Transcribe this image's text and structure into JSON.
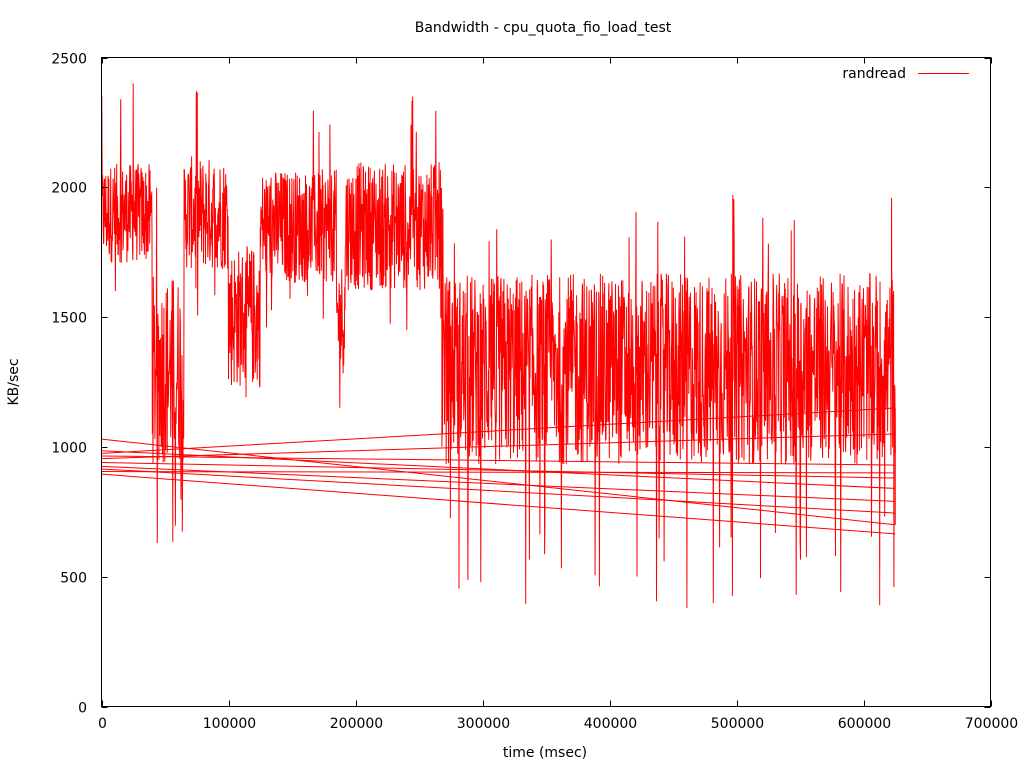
{
  "chart_data": {
    "type": "line",
    "title": "Bandwidth - cpu_quota_fio_load_test",
    "xlabel": "time (msec)",
    "ylabel": "KB/sec",
    "xlim": [
      0,
      700000
    ],
    "ylim": [
      0,
      2500
    ],
    "x_ticks": [
      0,
      100000,
      200000,
      300000,
      400000,
      500000,
      600000,
      700000
    ],
    "x_tick_labels": [
      "0",
      "100000",
      "200000",
      "300000",
      "400000",
      "500000",
      "600000",
      "700000"
    ],
    "y_ticks": [
      0,
      500,
      1000,
      1500,
      2000,
      2500
    ],
    "y_tick_labels": [
      "0",
      "500",
      "1000",
      "1500",
      "2000",
      "2500"
    ],
    "grid": false,
    "legend_position": "top-right",
    "series": [
      {
        "name": "randread",
        "color": "#ff0000",
        "segments_summary": [
          {
            "x_start": 0,
            "x_end": 40000,
            "mean": 1900,
            "min": 1550,
            "max": 2400
          },
          {
            "x_start": 40000,
            "x_end": 65000,
            "mean": 1300,
            "min": 630,
            "max": 2150
          },
          {
            "x_start": 65000,
            "x_end": 100000,
            "mean": 1900,
            "min": 1500,
            "max": 2370
          },
          {
            "x_start": 100000,
            "x_end": 125000,
            "mean": 1500,
            "min": 1000,
            "max": 2200
          },
          {
            "x_start": 125000,
            "x_end": 185000,
            "mean": 1850,
            "min": 1450,
            "max": 2300
          },
          {
            "x_start": 185000,
            "x_end": 192000,
            "mean": 1500,
            "min": 980,
            "max": 1900
          },
          {
            "x_start": 192000,
            "x_end": 268000,
            "mean": 1850,
            "min": 1400,
            "max": 2350
          },
          {
            "x_start": 268000,
            "x_end": 625000,
            "mean": 1300,
            "min": 380,
            "max": 1970
          }
        ],
        "wraparound_lines": [
          {
            "x0": 0,
            "y0": 1030,
            "x1": 625000,
            "y1": 700
          },
          {
            "x0": 0,
            "y0": 985,
            "x1": 625000,
            "y1": 840
          },
          {
            "x0": 0,
            "y0": 975,
            "x1": 625000,
            "y1": 1150
          },
          {
            "x0": 0,
            "y0": 965,
            "x1": 625000,
            "y1": 930
          },
          {
            "x0": 0,
            "y0": 955,
            "x1": 625000,
            "y1": 1050
          },
          {
            "x0": 0,
            "y0": 940,
            "x1": 625000,
            "y1": 880
          },
          {
            "x0": 0,
            "y0": 925,
            "x1": 625000,
            "y1": 790
          },
          {
            "x0": 0,
            "y0": 915,
            "x1": 625000,
            "y1": 745
          },
          {
            "x0": 0,
            "y0": 905,
            "x1": 625000,
            "y1": 900
          },
          {
            "x0": 0,
            "y0": 895,
            "x1": 625000,
            "y1": 665
          }
        ],
        "notable_points": [
          {
            "x": 25000,
            "y": 2400
          },
          {
            "x": 75000,
            "y": 2370
          },
          {
            "x": 245000,
            "y": 2350
          },
          {
            "x": 44000,
            "y": 630
          },
          {
            "x": 56000,
            "y": 635
          },
          {
            "x": 437000,
            "y": 405
          },
          {
            "x": 461000,
            "y": 380
          },
          {
            "x": 547000,
            "y": 430
          },
          {
            "x": 624000,
            "y": 460
          },
          {
            "x": 622000,
            "y": 1960
          },
          {
            "x": 497000,
            "y": 1970
          }
        ]
      }
    ]
  },
  "legend": {
    "label": "randread",
    "color": "#ff0000"
  }
}
